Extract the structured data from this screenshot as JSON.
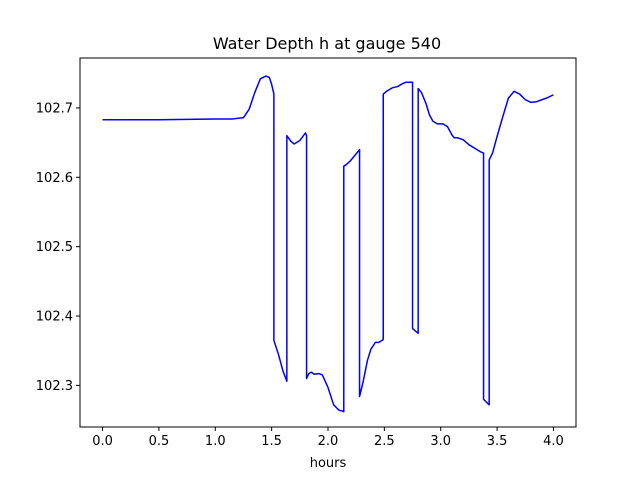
{
  "chart_data": {
    "type": "line",
    "title": "Water Depth h at gauge 540",
    "xlabel": "hours",
    "ylabel": "",
    "xlim": [
      -0.2,
      4.2
    ],
    "ylim": [
      102.24,
      102.772
    ],
    "grid": false,
    "xticks": [
      0.0,
      0.5,
      1.0,
      1.5,
      2.0,
      2.5,
      3.0,
      3.5,
      4.0
    ],
    "xtick_labels": [
      "0.0",
      "0.5",
      "1.0",
      "1.5",
      "2.0",
      "2.5",
      "3.0",
      "3.5",
      "4.0"
    ],
    "yticks": [
      102.3,
      102.4,
      102.5,
      102.6,
      102.7
    ],
    "ytick_labels": [
      "102.3",
      "102.4",
      "102.5",
      "102.6",
      "102.7"
    ],
    "series": [
      {
        "color": "#0000ff",
        "x": [
          0.0,
          0.5,
          1.0,
          1.15,
          1.25,
          1.3,
          1.35,
          1.4,
          1.45,
          1.48,
          1.5,
          1.52,
          1.52,
          1.56,
          1.6,
          1.635,
          1.635,
          1.67,
          1.7,
          1.75,
          1.8,
          1.81,
          1.81,
          1.83,
          1.85,
          1.88,
          1.92,
          1.95,
          2.0,
          2.05,
          2.08,
          2.1,
          2.13,
          2.14,
          2.14,
          2.16,
          2.2,
          2.25,
          2.28,
          2.28,
          2.31,
          2.35,
          2.38,
          2.42,
          2.45,
          2.47,
          2.49,
          2.49,
          2.52,
          2.57,
          2.62,
          2.66,
          2.69,
          2.72,
          2.75,
          2.75,
          2.8,
          2.8,
          2.83,
          2.87,
          2.9,
          2.93,
          2.97,
          3.02,
          3.06,
          3.1,
          3.12,
          3.15,
          3.2,
          3.25,
          3.3,
          3.35,
          3.38,
          3.38,
          3.41,
          3.43,
          3.43,
          3.46,
          3.5,
          3.55,
          3.6,
          3.65,
          3.7,
          3.75,
          3.8,
          3.85,
          3.9,
          3.95,
          4.0
        ],
        "y": [
          102.683,
          102.683,
          102.684,
          102.684,
          102.686,
          102.698,
          102.722,
          102.742,
          102.746,
          102.744,
          102.734,
          102.72,
          102.365,
          102.345,
          102.321,
          102.306,
          102.66,
          102.652,
          102.648,
          102.653,
          102.664,
          102.66,
          102.31,
          102.317,
          102.319,
          102.316,
          102.317,
          102.315,
          102.297,
          102.272,
          102.267,
          102.264,
          102.263,
          102.262,
          102.616,
          102.618,
          102.624,
          102.634,
          102.64,
          102.284,
          102.304,
          102.336,
          102.352,
          102.362,
          102.362,
          102.364,
          102.366,
          102.72,
          102.724,
          102.729,
          102.731,
          102.735,
          102.737,
          102.737,
          102.737,
          102.382,
          102.375,
          102.728,
          102.722,
          102.706,
          102.69,
          102.681,
          102.677,
          102.677,
          102.673,
          102.661,
          102.657,
          102.657,
          102.654,
          102.647,
          102.642,
          102.637,
          102.635,
          102.28,
          102.275,
          102.272,
          102.625,
          102.635,
          102.659,
          102.687,
          102.714,
          102.724,
          102.72,
          102.712,
          102.708,
          102.709,
          102.712,
          102.715,
          102.719
        ]
      }
    ]
  }
}
